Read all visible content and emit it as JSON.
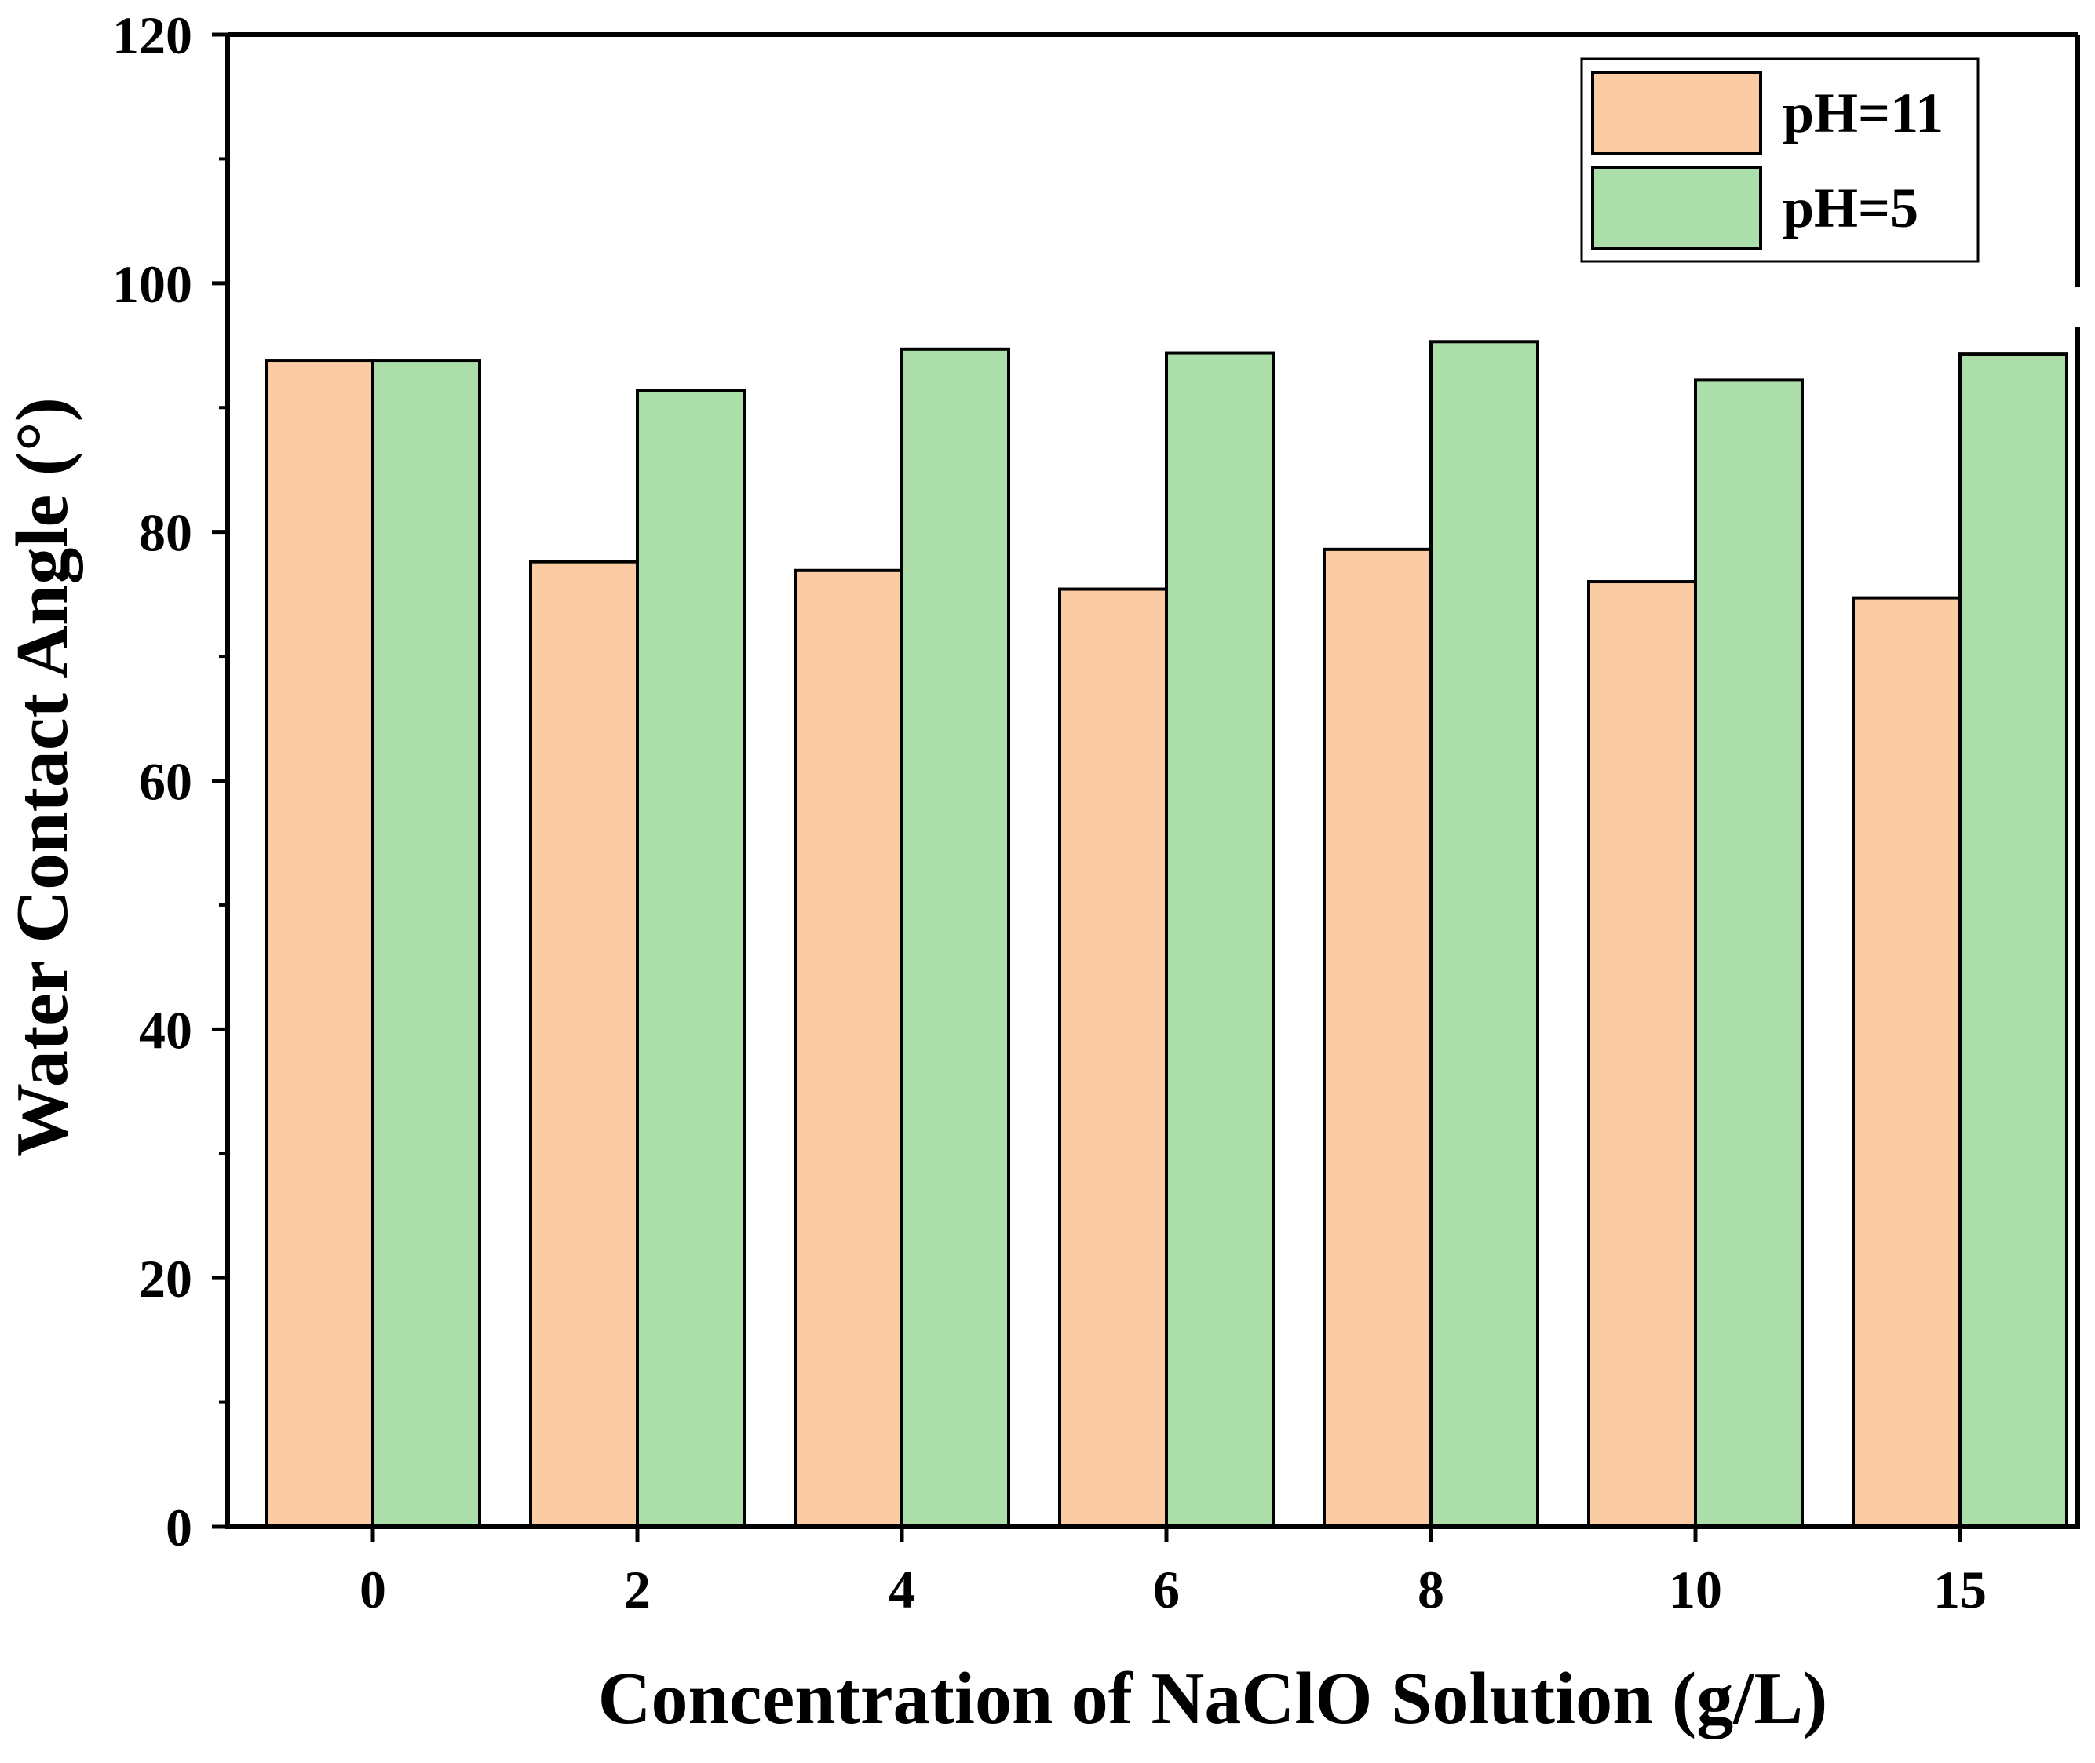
{
  "chart_data": {
    "type": "bar",
    "xlabel": "Concentration of NaClO Solution (g/L)",
    "ylabel": "Water Contact Angle (°)",
    "categories": [
      "0",
      "2",
      "4",
      "6",
      "8",
      "10",
      "15"
    ],
    "ylim": [
      0,
      120
    ],
    "yticks": [
      0,
      20,
      40,
      60,
      80,
      100,
      120
    ],
    "grid": false,
    "legend_position": "top-right",
    "series": [
      {
        "name": "pH=11",
        "color": "#fbcca3",
        "values": [
          93.8,
          77.6,
          76.9,
          75.4,
          78.6,
          76.0,
          74.7
        ]
      },
      {
        "name": "pH=5",
        "color": "#acdea9",
        "values": [
          93.8,
          91.4,
          94.7,
          94.4,
          95.3,
          92.2,
          94.3
        ]
      }
    ]
  }
}
